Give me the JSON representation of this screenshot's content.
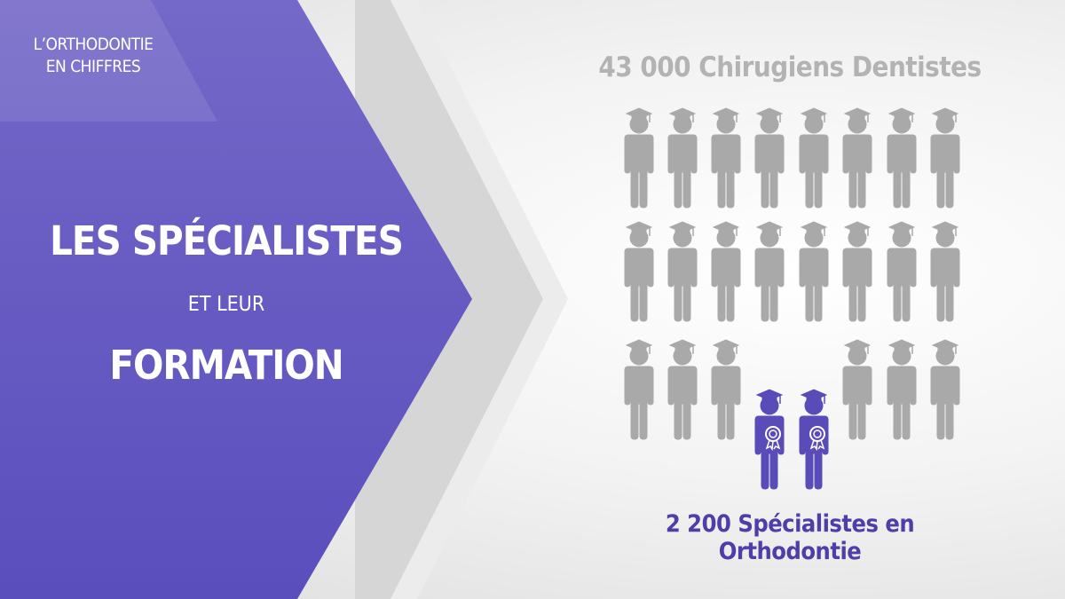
{
  "header_tag": {
    "line1": "L’ORTHODONTIE",
    "line2": "EN CHIFFRES"
  },
  "title": {
    "line1": "LES SPÉCIALISTES",
    "line2": "ET LEUR",
    "line3": "FORMATION"
  },
  "stats": {
    "total_label": "43 000 Chirugiens Dentistes",
    "specialists_label": "2 200 Spécialistes en Orthodontie"
  },
  "icons": {
    "general": "graduate-person-icon",
    "specialist": "graduate-person-with-award-icon"
  },
  "colors": {
    "panel": "#6a5fc6",
    "figure_gray": "#a9a9a9",
    "figure_purple": "#5a4cb8",
    "accent_text": "#4e3fa8"
  }
}
